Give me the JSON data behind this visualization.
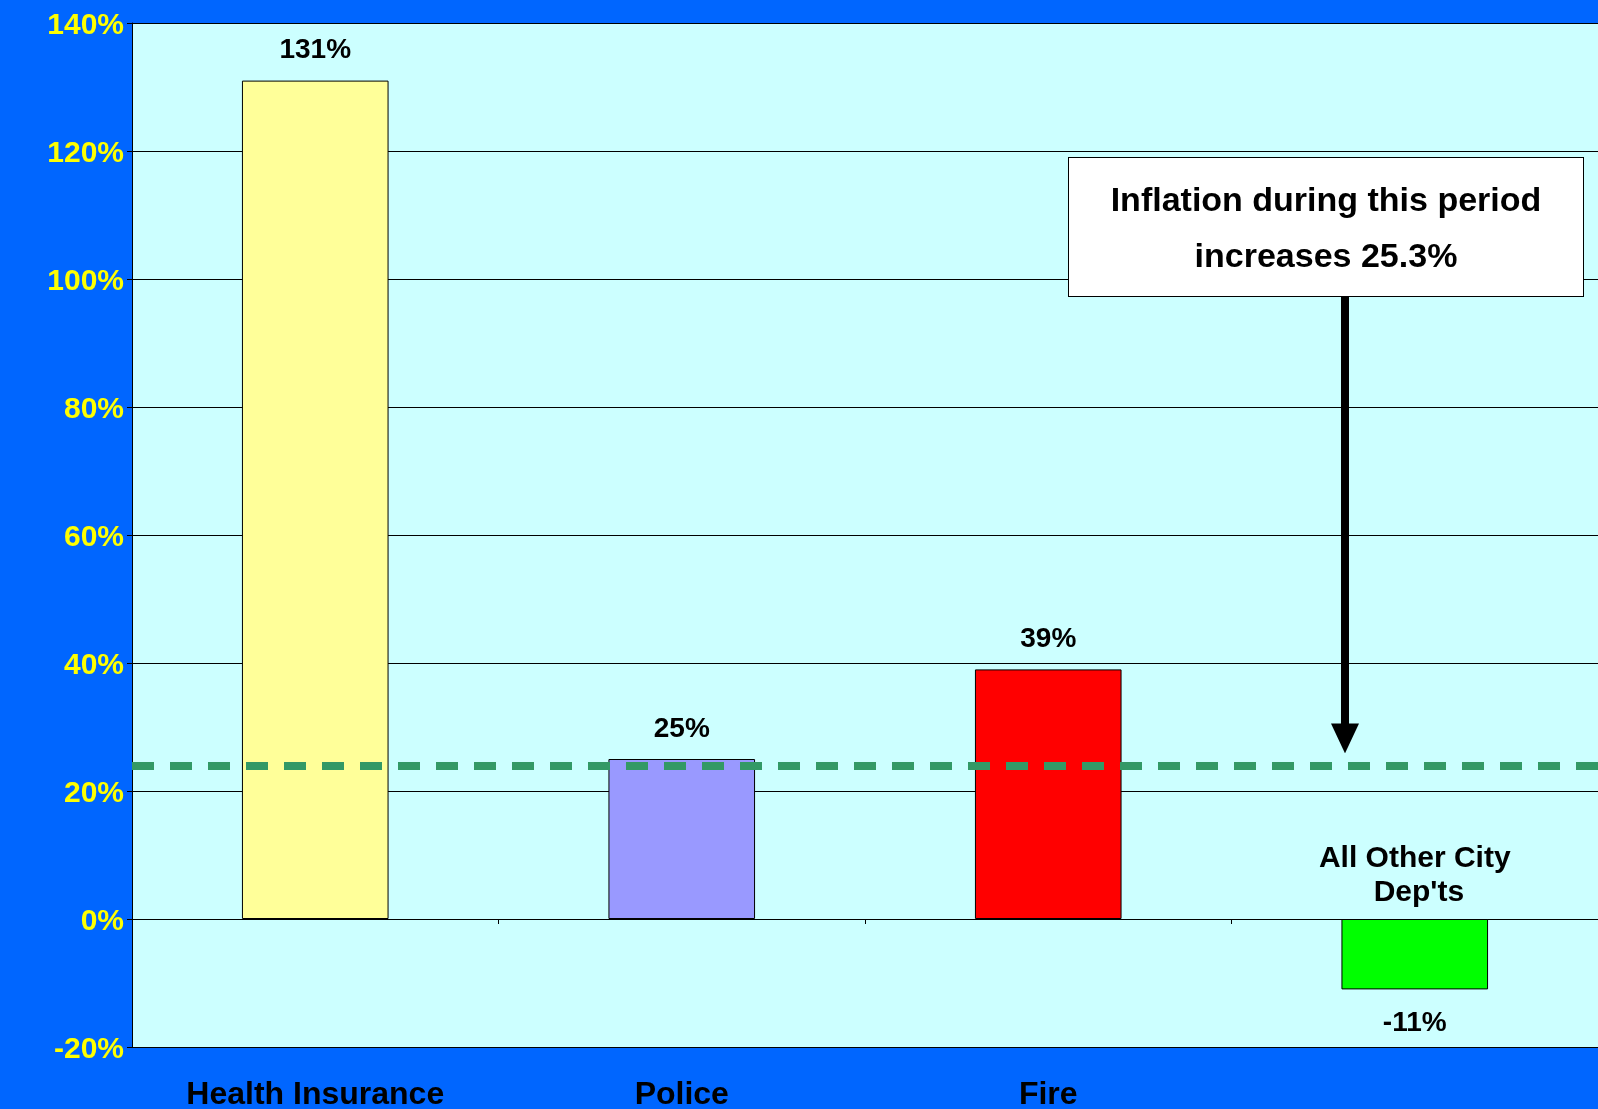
{
  "chart_data": {
    "type": "bar",
    "categories": [
      "Health Insurance",
      "Police",
      "Fire",
      "All Other City Dep'ts"
    ],
    "values": [
      131,
      25,
      39,
      -11
    ],
    "colors": [
      "#ffff99",
      "#9999ff",
      "#ff0000",
      "#00ff00"
    ],
    "value_labels": [
      "131%",
      "25%",
      "39%",
      "-11%"
    ],
    "ylim": [
      -20,
      140
    ],
    "yticks": [
      {
        "value": -20,
        "label": "-20%"
      },
      {
        "value": 0,
        "label": "0%"
      },
      {
        "value": 20,
        "label": "20%"
      },
      {
        "value": 40,
        "label": "40%"
      },
      {
        "value": 60,
        "label": "60%"
      },
      {
        "value": 80,
        "label": "80%"
      },
      {
        "value": 100,
        "label": "100%"
      },
      {
        "value": 120,
        "label": "120%"
      },
      {
        "value": 140,
        "label": "140%"
      }
    ],
    "grid": "y",
    "ref_lines": [
      {
        "axis": "y",
        "value": 24,
        "color": "#339966",
        "line_style": "dashed"
      }
    ],
    "annotations": [
      "Inflation during this period increases  25.3%"
    ]
  }
}
